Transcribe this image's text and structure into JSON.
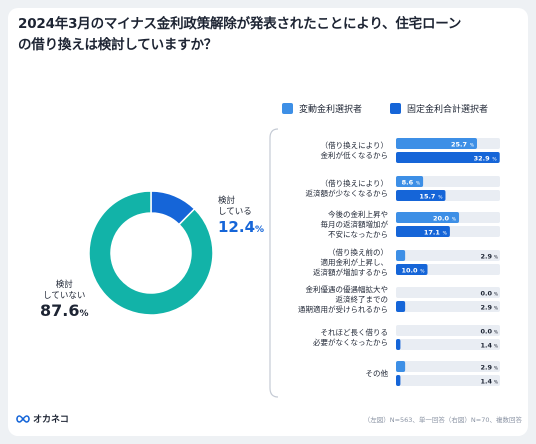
{
  "title_line1": "2024年3月のマイナス金利政策解除が発表されたことにより、住宅ローン",
  "title_line2": "の借り換えは検討していますか？",
  "donut": {
    "yes_label_line1": "検討",
    "yes_label_line2": "している",
    "yes_value": "12.4",
    "no_label_line1": "検討",
    "no_label_line2": "していない",
    "no_value": "87.6",
    "pct_sign": "%"
  },
  "legend": {
    "variable": "変動金利選択者",
    "fixed": "固定金利合計選択者"
  },
  "colors": {
    "teal": "#12b3a8",
    "blue": "#1565d8",
    "light_blue": "#3d8fe6",
    "track": "#e9edf3"
  },
  "chart_data": [
    {
      "type": "pie",
      "labels": [
        "検討している",
        "検討していない"
      ],
      "values": [
        12.4,
        87.6
      ],
      "note": "(左図) N=563、単一回答"
    },
    {
      "type": "bar",
      "orientation": "horizontal",
      "categories": [
        [
          "（借り換えにより）",
          "金利が低くなるから"
        ],
        [
          "（借り換えにより）",
          "返済額が少なくなるから"
        ],
        [
          "今後の金利上昇や",
          "毎月の返済額増加が",
          "不安になったから"
        ],
        [
          "（借り換え前の）",
          "適用金利が上昇し、",
          "返済額が増加するから"
        ],
        [
          "金利優遇の優遇幅拡大や",
          "返済終了までの",
          "通期適用が受けられるから"
        ],
        [
          "それほど長く借りる",
          "必要がなくなったから"
        ],
        [
          "その他"
        ]
      ],
      "series": [
        {
          "name": "変動金利選択者",
          "values": [
            25.7,
            8.6,
            20.0,
            2.9,
            0.0,
            0.0,
            2.9
          ]
        },
        {
          "name": "固定金利合計選択者",
          "values": [
            32.9,
            15.7,
            17.1,
            10.0,
            2.9,
            1.4,
            1.4
          ]
        }
      ],
      "value_labels": [
        [
          "25.7",
          "32.9"
        ],
        [
          "8.6",
          "15.7"
        ],
        [
          "20.0",
          "17.1"
        ],
        [
          "2.9",
          "10.0"
        ],
        [
          "0.0",
          "2.9"
        ],
        [
          "0.0",
          "1.4"
        ],
        [
          "2.9",
          "1.4"
        ]
      ],
      "unit": "%",
      "xlim": [
        0,
        33
      ],
      "note": "(右図) N=70、複数回答"
    }
  ],
  "footer_note": "（左図）N=563、単一回答（右図）N=70、複数回答",
  "brand_name": "オカネコ"
}
